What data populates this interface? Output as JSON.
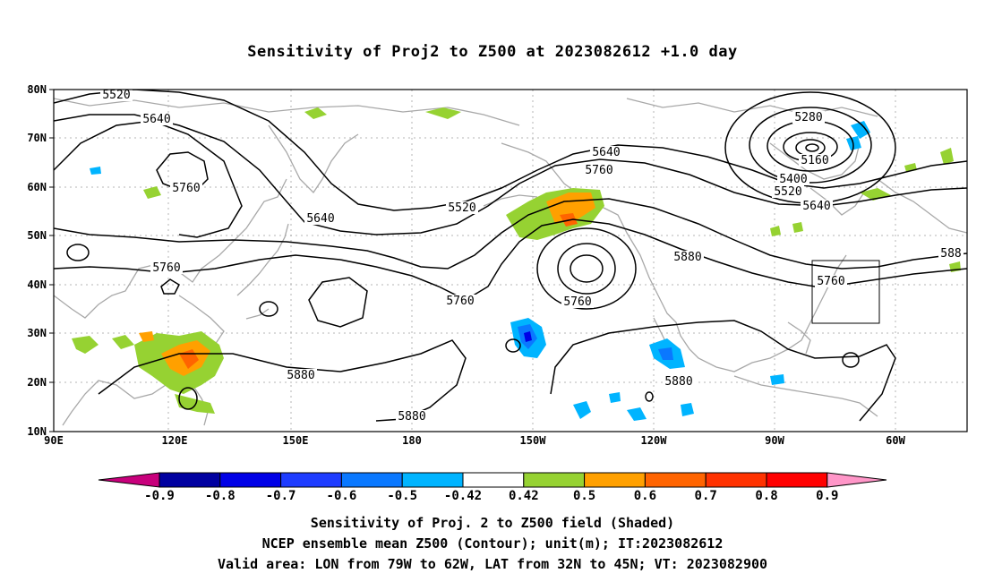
{
  "title": "Sensitivity of Proj2 to Z500 at 2023082612 +1.0 day",
  "lat_labels": [
    "80N",
    "70N",
    "60N",
    "50N",
    "40N",
    "30N",
    "20N",
    "10N"
  ],
  "lon_labels": [
    "90E",
    "120E",
    "150E",
    "180",
    "150W",
    "120W",
    "90W",
    "60W"
  ],
  "contour_labels": [
    {
      "text": "5520",
      "region": "upper-left"
    },
    {
      "text": "5640",
      "region": "upper-left"
    },
    {
      "text": "5760",
      "region": "west-pacific"
    },
    {
      "text": "5640",
      "region": "east-asia"
    },
    {
      "text": "5760",
      "region": "west"
    },
    {
      "text": "5520",
      "region": "north-pacific"
    },
    {
      "text": "5640",
      "region": "alaska"
    },
    {
      "text": "5760",
      "region": "alaska"
    },
    {
      "text": "5760",
      "region": "central-pacific"
    },
    {
      "text": "5760",
      "region": "east-pacific-low"
    },
    {
      "text": "5880",
      "region": "north-america"
    },
    {
      "text": "5880",
      "region": "west-pacific-south"
    },
    {
      "text": "5880",
      "region": "central-pacific-south"
    },
    {
      "text": "5880",
      "region": "mexico"
    },
    {
      "text": "5280",
      "region": "hudson-low"
    },
    {
      "text": "5160",
      "region": "hudson-low"
    },
    {
      "text": "5400",
      "region": "hudson-low"
    },
    {
      "text": "5520",
      "region": "hudson-low"
    },
    {
      "text": "5640",
      "region": "canada"
    },
    {
      "text": "5760",
      "region": "us-east"
    },
    {
      "text": "588",
      "region": "atlantic-edge"
    }
  ],
  "colorbar": {
    "labels": [
      "-0.9",
      "-0.8",
      "-0.7",
      "-0.6",
      "-0.5",
      "-0.42",
      "0.42",
      "0.5",
      "0.6",
      "0.7",
      "0.8",
      "0.9"
    ],
    "colors": [
      "#c8007c",
      "#0000a0",
      "#0000e6",
      "#1e3cff",
      "#0a78ff",
      "#00b4ff",
      "#ffffff",
      "#96d232",
      "#ffa000",
      "#ff6400",
      "#ff3200",
      "#ff0000",
      "#ff96c8"
    ]
  },
  "footer": {
    "line1": "Sensitivity of Proj. 2 to Z500 field (Shaded)",
    "line2": "NCEP ensemble mean Z500 (Contour); unit(m); IT:2023082612",
    "line3": "Valid area: LON from 79W to 62W, LAT from 32N to 45N; VT: 2023082900"
  }
}
